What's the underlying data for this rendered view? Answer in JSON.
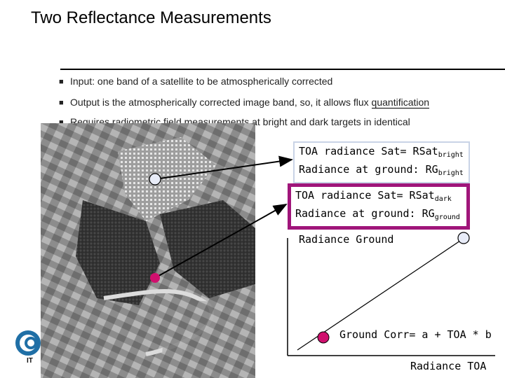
{
  "title": "Two Reflectance Measurements",
  "bullets": [
    "Input: one band of a satellite to be atmospherically corrected",
    "Output is the atmospherically corrected image band, so, it allows flux",
    "Requires radiometric field measurements at bright and dark targets in identical"
  ],
  "bullet_underlined_word": "quantification",
  "bright_box": {
    "line1": "TOA radiance Sat= RSat",
    "line1_sub": "bright",
    "line2": "Radiance at ground: RG",
    "line2_sub": "bright"
  },
  "dark_box": {
    "line1": "TOA radiance Sat= RSat",
    "line1_sub": "dark",
    "line2": "Radiance at ground: RG",
    "line2_sub": "ground"
  },
  "graph": {
    "y_label": "Radiance Ground",
    "x_label": "Radiance TOA",
    "equation": "Ground Corr= a + TOA * b"
  },
  "logo_text": "IT",
  "colors": {
    "dark_target": "#d0106e",
    "bright_target": "#e8ecf8",
    "dark_box_border": "#a0157a",
    "bright_box_border": "#c9d3e6"
  }
}
